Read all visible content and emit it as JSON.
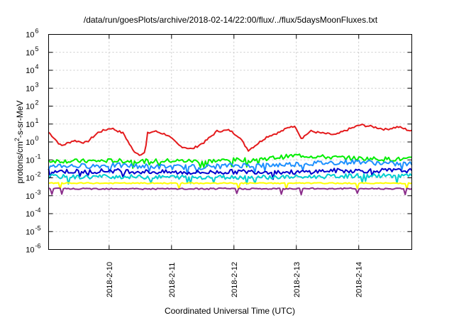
{
  "chart_data": {
    "type": "line",
    "title": "/data/run/goesPlots/archive/2018-02-14/22:00/flux/../flux/5daysMoonFluxes.txt",
    "xlabel": "Coordinated Universal Time (UTC)",
    "ylabel_parts": [
      "protons/cm",
      "2",
      "-s-sr-MeV"
    ],
    "y_scale": "log",
    "ylim": [
      1e-06,
      1000000.0
    ],
    "xlim": [
      0,
      5.82
    ],
    "grid": true,
    "x_ticks": [
      {
        "value": 0.97,
        "label": "2018-2-10"
      },
      {
        "value": 1.97,
        "label": "2018-2-11"
      },
      {
        "value": 2.97,
        "label": "2018-2-12"
      },
      {
        "value": 3.97,
        "label": "2018-2-13"
      },
      {
        "value": 4.97,
        "label": "2018-2-14"
      }
    ],
    "y_ticks": [
      {
        "value": 1e-06,
        "base": "10",
        "exp": "-6"
      },
      {
        "value": 1e-05,
        "base": "10",
        "exp": "-5"
      },
      {
        "value": 0.0001,
        "base": "10",
        "exp": "-4"
      },
      {
        "value": 0.001,
        "base": "10",
        "exp": "-3"
      },
      {
        "value": 0.01,
        "base": "10",
        "exp": "-2"
      },
      {
        "value": 0.1,
        "base": "10",
        "exp": "-1"
      },
      {
        "value": 1,
        "base": "10",
        "exp": "0"
      },
      {
        "value": 10,
        "base": "10",
        "exp": "1"
      },
      {
        "value": 100,
        "base": "10",
        "exp": "2"
      },
      {
        "value": 1000,
        "base": "10",
        "exp": "3"
      },
      {
        "value": 10000,
        "base": "10",
        "exp": "4"
      },
      {
        "value": 100000,
        "base": "10",
        "exp": "5"
      },
      {
        "value": 1000000,
        "base": "10",
        "exp": "6"
      }
    ],
    "series": [
      {
        "color": "#e41a1c",
        "x": [
          0,
          0.1,
          0.2,
          0.4,
          0.6,
          0.8,
          1.0,
          1.2,
          1.35,
          1.45,
          1.55,
          1.58,
          1.7,
          1.9,
          2.1,
          2.3,
          2.5,
          2.7,
          2.9,
          3.05,
          3.2,
          3.3,
          3.5,
          3.7,
          3.9,
          3.97,
          4.05,
          4.2,
          4.4,
          4.6,
          4.8,
          5.0,
          5.2,
          5.4,
          5.6,
          5.82
        ],
        "values": [
          3.5,
          1.5,
          0.6,
          1.2,
          0.9,
          3.5,
          6,
          3,
          0.35,
          0.2,
          0.25,
          3,
          4,
          2.5,
          0.6,
          0.4,
          1,
          4,
          4.5,
          2,
          0.35,
          0.6,
          2,
          3.5,
          8,
          6,
          1.6,
          4,
          3,
          2.5,
          5,
          9,
          7,
          5,
          7,
          4
        ]
      },
      {
        "color": "#00ee00",
        "x": [
          0,
          0.5,
          1,
          1.5,
          2,
          2.5,
          3,
          3.5,
          4,
          4.5,
          5,
          5.5,
          5.82
        ],
        "values": [
          0.09,
          0.085,
          0.09,
          0.085,
          0.09,
          0.085,
          0.1,
          0.12,
          0.18,
          0.14,
          0.12,
          0.11,
          0.11
        ]
      },
      {
        "color": "#1e90ff",
        "x": [
          0,
          0.5,
          1,
          1.5,
          2,
          2.5,
          3,
          3.5,
          4,
          4.5,
          5,
          5.5,
          5.82
        ],
        "values": [
          0.05,
          0.045,
          0.05,
          0.045,
          0.04,
          0.04,
          0.05,
          0.05,
          0.06,
          0.07,
          0.08,
          0.06,
          0.06
        ]
      },
      {
        "color": "#0000cd",
        "x": [
          0,
          0.5,
          1,
          1.5,
          2,
          2.5,
          3,
          3.5,
          4,
          4.5,
          5,
          5.5,
          5.82
        ],
        "values": [
          0.025,
          0.022,
          0.025,
          0.022,
          0.02,
          0.02,
          0.022,
          0.022,
          0.02,
          0.025,
          0.025,
          0.025,
          0.025
        ]
      },
      {
        "color": "#00ced1",
        "x": [
          0,
          0.5,
          1,
          1.5,
          2,
          2.5,
          3,
          3.5,
          4,
          4.5,
          5,
          5.5,
          5.82
        ],
        "values": [
          0.012,
          0.011,
          0.012,
          0.011,
          0.011,
          0.011,
          0.011,
          0.011,
          0.011,
          0.012,
          0.013,
          0.013,
          0.013
        ]
      },
      {
        "color": "#ffff00",
        "x": [
          0,
          0.5,
          1,
          1.5,
          2,
          2.5,
          3,
          3.5,
          4,
          4.5,
          5,
          5.5,
          5.82
        ],
        "values": [
          0.005,
          0.005,
          0.005,
          0.005,
          0.005,
          0.005,
          0.005,
          0.005,
          0.005,
          0.005,
          0.005,
          0.005,
          0.005
        ]
      },
      {
        "color": "#8b2d8b",
        "x": [
          0,
          0.5,
          1,
          1.5,
          2,
          2.5,
          3,
          3.5,
          4,
          4.5,
          5,
          5.5,
          5.82
        ],
        "values": [
          0.0025,
          0.0024,
          0.0025,
          0.0024,
          0.0024,
          0.0024,
          0.0025,
          0.0024,
          0.0025,
          0.0025,
          0.0025,
          0.0025,
          0.0025
        ]
      }
    ]
  }
}
